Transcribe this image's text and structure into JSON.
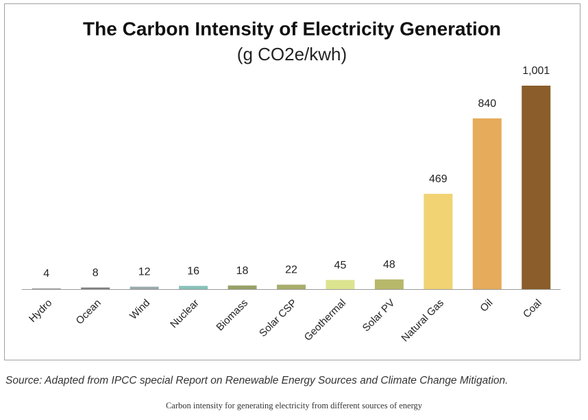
{
  "chart_data": {
    "type": "bar",
    "title": "The Carbon Intensity of Electricity Generation",
    "subtitle": "(g CO2e/kwh)",
    "categories": [
      "Hydro",
      "Ocean",
      "Wind",
      "Nuclear",
      "Biomass",
      "Solar CSP",
      "Geothermal",
      "Solar PV",
      "Natural Gas",
      "Oil",
      "Coal"
    ],
    "values": [
      4,
      8,
      12,
      16,
      18,
      22,
      45,
      48,
      469,
      840,
      1001
    ],
    "value_labels": [
      "4",
      "8",
      "12",
      "16",
      "18",
      "22",
      "45",
      "48",
      "469",
      "840",
      "1,001"
    ],
    "colors": [
      "#a3a3a3",
      "#7f7f7f",
      "#9aa9a9",
      "#88c2ba",
      "#98a067",
      "#a8ad6b",
      "#dce48f",
      "#b8b86b",
      "#f1d374",
      "#e6ab5b",
      "#8a5d2b"
    ]
  },
  "source": "Source: Adapted from IPCC special Report on Renewable Energy Sources and Climate Change Mitigation.",
  "caption": "Carbon intensity for generating electricity from different sources of energy"
}
